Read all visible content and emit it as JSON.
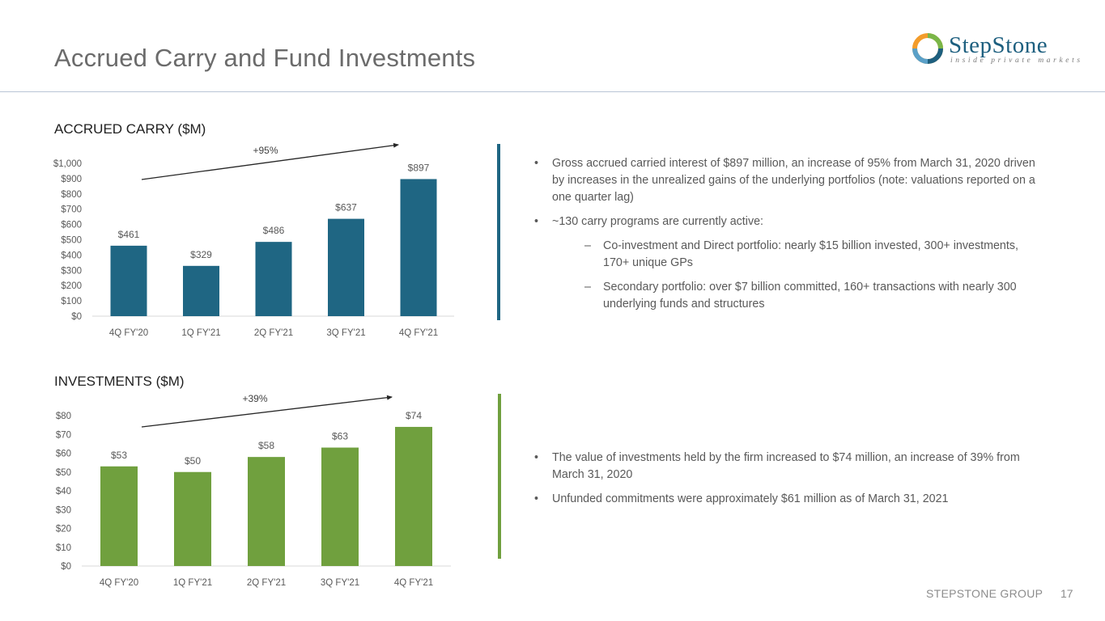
{
  "header": {
    "title": "Accrued Carry and Fund Investments",
    "logo_name": "StepStone",
    "logo_tagline": "inside private markets"
  },
  "colors": {
    "carry_bar": "#1f6683",
    "investments_bar": "#70a03e",
    "logo_teal": "#1d5f7f",
    "logo_green": "#7ab648",
    "logo_orange": "#f39c2b"
  },
  "sections": {
    "carry_label": "ACCRUED CARRY ($M)",
    "investments_label": "INVESTMENTS ($M)"
  },
  "chart_data": [
    {
      "type": "bar",
      "title": "ACCRUED CARRY ($M)",
      "categories": [
        "4Q FY'20",
        "1Q FY'21",
        "2Q FY'21",
        "3Q FY'21",
        "4Q FY'21"
      ],
      "values": [
        461,
        329,
        486,
        637,
        897
      ],
      "data_labels": [
        "$461",
        "$329",
        "$486",
        "$637",
        "$897"
      ],
      "yticks": [
        "$0",
        "$100",
        "$200",
        "$300",
        "$400",
        "$500",
        "$600",
        "$700",
        "$800",
        "$900",
        "$1,000"
      ],
      "ylim": [
        0,
        1000
      ],
      "growth_annotation": "+95%",
      "grid": false
    },
    {
      "type": "bar",
      "title": "INVESTMENTS ($M)",
      "categories": [
        "4Q FY'20",
        "1Q FY'21",
        "2Q FY'21",
        "3Q FY'21",
        "4Q FY'21"
      ],
      "values": [
        53,
        50,
        58,
        63,
        74
      ],
      "data_labels": [
        "$53",
        "$50",
        "$58",
        "$63",
        "$74"
      ],
      "yticks": [
        "$0",
        "$10",
        "$20",
        "$30",
        "$40",
        "$50",
        "$60",
        "$70",
        "$80"
      ],
      "ylim": [
        0,
        80
      ],
      "growth_annotation": "+39%",
      "grid": false
    }
  ],
  "carry_text": {
    "bullet1": "Gross accrued carried interest of $897 million, an increase of 95% from March 31, 2020 driven by increases in the unrealized gains of the underlying portfolios (note: valuations reported on a one quarter lag)",
    "bullet2": "~130 carry programs are currently active:",
    "sub1": "Co-investment and Direct portfolio: nearly $15 billion invested, 300+ investments, 170+ unique GPs",
    "sub2": "Secondary portfolio: over $7 billion committed, 160+ transactions with nearly 300 underlying funds and structures"
  },
  "investments_text": {
    "bullet1": "The value of investments held by the firm increased to $74 million, an increase of 39% from March 31, 2020",
    "bullet2": "Unfunded commitments were approximately $61 million as of March 31, 2021"
  },
  "footer": {
    "brand": "STEPSTONE GROUP",
    "page": "17"
  }
}
